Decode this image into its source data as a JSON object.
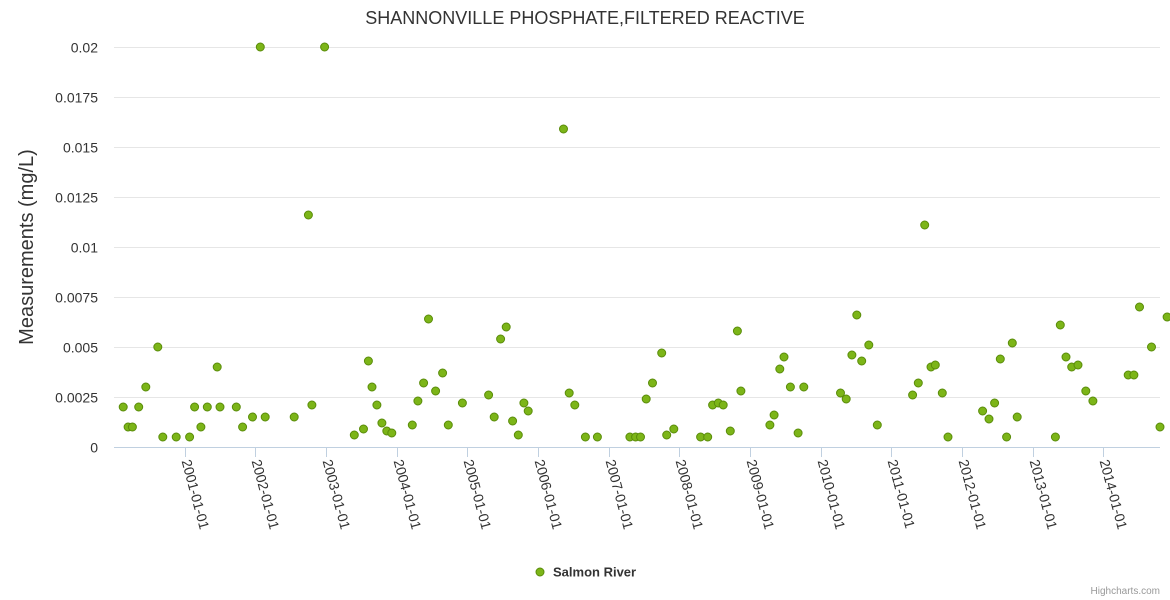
{
  "chart_data": {
    "type": "scatter",
    "title": "SHANNONVILLE PHOSPHATE,FILTERED REACTIVE",
    "ylabel": "Measurements (mg/L)",
    "xlabel": "",
    "ylim": [
      0,
      0.02
    ],
    "y_ticks": [
      0,
      0.0025,
      0.005,
      0.0075,
      0.01,
      0.0125,
      0.015,
      0.0175,
      0.02
    ],
    "y_tick_labels": [
      "0",
      "0.0025",
      "0.005",
      "0.0075",
      "0.01",
      "0.0125",
      "0.015",
      "0.0175",
      "0.02"
    ],
    "x_range": [
      2000.0,
      2014.8
    ],
    "x_ticks": [
      2001,
      2002,
      2003,
      2004,
      2005,
      2006,
      2007,
      2008,
      2009,
      2010,
      2011,
      2012,
      2013,
      2014
    ],
    "x_tick_labels": [
      "2001-01-01",
      "2002-01-01",
      "2003-01-01",
      "2004-01-01",
      "2005-01-01",
      "2006-01-01",
      "2007-01-01",
      "2008-01-01",
      "2009-01-01",
      "2010-01-01",
      "2011-01-01",
      "2012-01-01",
      "2013-01-01",
      "2014-01-01"
    ],
    "grid": true,
    "legend_position": "bottom-center",
    "series": [
      {
        "name": "Salmon River",
        "color": "#7cb518",
        "edge_color": "#5a8c0a",
        "x": [
          2000.13,
          2000.2,
          2000.26,
          2000.35,
          2000.45,
          2000.62,
          2000.69,
          2000.88,
          2001.07,
          2001.14,
          2001.23,
          2001.32,
          2001.46,
          2001.5,
          2001.73,
          2001.82,
          2001.96,
          2002.07,
          2002.14,
          2002.55,
          2002.75,
          2002.8,
          2002.98,
          2003.4,
          2003.53,
          2003.6,
          2003.65,
          2003.72,
          2003.79,
          2003.86,
          2003.93,
          2004.22,
          2004.3,
          2004.38,
          2004.45,
          2004.55,
          2004.65,
          2004.73,
          2004.93,
          2005.3,
          2005.38,
          2005.47,
          2005.55,
          2005.64,
          2005.72,
          2005.8,
          2005.86,
          2006.36,
          2006.44,
          2006.52,
          2006.67,
          2006.84,
          2007.3,
          2007.38,
          2007.45,
          2007.53,
          2007.62,
          2007.75,
          2007.82,
          2007.92,
          2008.3,
          2008.4,
          2008.47,
          2008.55,
          2008.62,
          2008.72,
          2008.82,
          2008.87,
          2009.28,
          2009.34,
          2009.42,
          2009.48,
          2009.57,
          2009.68,
          2009.76,
          2010.28,
          2010.36,
          2010.44,
          2010.51,
          2010.58,
          2010.68,
          2010.8,
          2011.3,
          2011.38,
          2011.47,
          2011.56,
          2011.62,
          2011.72,
          2011.8,
          2012.29,
          2012.38,
          2012.46,
          2012.54,
          2012.63,
          2012.71,
          2012.78,
          2013.32,
          2013.39,
          2013.47,
          2013.55,
          2013.64,
          2013.75,
          2013.85,
          2014.35,
          2014.43,
          2014.51,
          2014.68,
          2014.8,
          2014.9
        ],
        "y": [
          0.002,
          0.001,
          0.001,
          0.002,
          0.003,
          0.005,
          0.0005,
          0.0005,
          0.0005,
          0.002,
          0.001,
          0.002,
          0.004,
          0.002,
          0.002,
          0.001,
          0.0015,
          0.02,
          0.0015,
          0.0015,
          0.0116,
          0.0021,
          0.02,
          0.0006,
          0.0009,
          0.0043,
          0.003,
          0.0021,
          0.0012,
          0.0008,
          0.0007,
          0.0011,
          0.0023,
          0.0032,
          0.0064,
          0.0028,
          0.0037,
          0.0011,
          0.0022,
          0.0026,
          0.0015,
          0.0054,
          0.006,
          0.0013,
          0.0006,
          0.0022,
          0.0018,
          0.0159,
          0.0027,
          0.0021,
          0.0005,
          0.0005,
          0.0005,
          0.0005,
          0.0005,
          0.0024,
          0.0032,
          0.0047,
          0.0006,
          0.0009,
          0.0005,
          0.0005,
          0.0021,
          0.0022,
          0.0021,
          0.0008,
          0.0058,
          0.0028,
          0.0011,
          0.0016,
          0.0039,
          0.0045,
          0.003,
          0.0007,
          0.003,
          0.0027,
          0.0024,
          0.0046,
          0.0066,
          0.0043,
          0.0051,
          0.0011,
          0.0026,
          0.0032,
          0.0111,
          0.004,
          0.0041,
          0.0027,
          0.0005,
          0.0018,
          0.0014,
          0.0022,
          0.0044,
          0.0005,
          0.0052,
          0.0015,
          0.0005,
          0.0061,
          0.0045,
          0.004,
          0.0041,
          0.0028,
          0.0023,
          0.0036,
          0.0036,
          0.007,
          0.005,
          0.001,
          0.0065
        ]
      }
    ]
  },
  "credits": "Highcharts.com"
}
